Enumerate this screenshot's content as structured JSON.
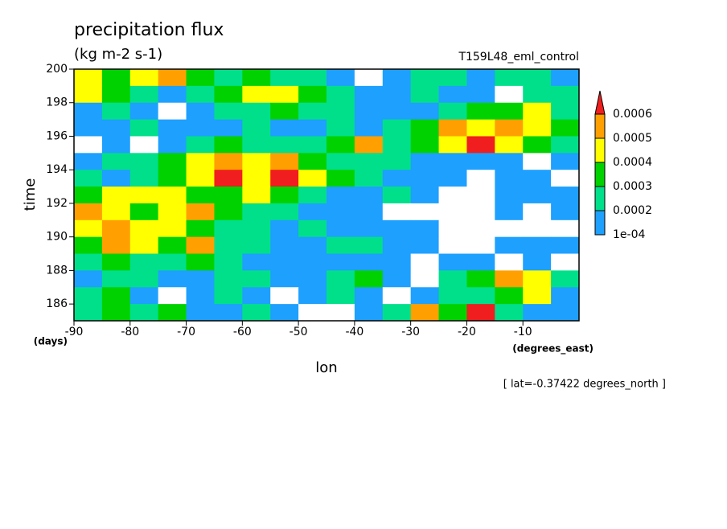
{
  "chart_data": {
    "type": "heatmap",
    "title": "precipitation flux",
    "subtitle": "(kg m-2 s-1)",
    "run_label": "T159L48_eml_control",
    "x_label": "lon",
    "x_units": "(degrees_east)",
    "y_label": "time",
    "y_units": "(days)",
    "annotation": "[ lat=-0.37422 degrees_north ]",
    "xlim": [
      -90,
      0
    ],
    "ylim": [
      185,
      200
    ],
    "xticks": [
      -90,
      -80,
      -70,
      -60,
      -50,
      -40,
      -30,
      -20,
      -10
    ],
    "yticks": [
      186,
      188,
      190,
      192,
      194,
      196,
      198,
      200
    ],
    "x": [
      -87.5,
      -82.5,
      -77.5,
      -72.5,
      -67.5,
      -62.5,
      -57.5,
      -52.5,
      -47.5,
      -42.5,
      -37.5,
      -32.5,
      -27.5,
      -22.5,
      -17.5,
      -12.5,
      -7.5,
      -2.5
    ],
    "y": [
      199.5,
      198.5,
      197.5,
      196.5,
      195.5,
      194.5,
      193.5,
      192.5,
      191.5,
      190.5,
      189.5,
      188.5,
      187.5,
      186.5,
      185.5
    ],
    "levels": [
      {
        "value": 0.0001,
        "label": "1e-04"
      },
      0.0002,
      0.0003,
      0.0004,
      0.0005,
      0.0006
    ],
    "colors": [
      "#ffffff",
      "#1ea0ff",
      "#00e08a",
      "#00d200",
      "#ffff00",
      "#ffa000",
      "#f01e1e"
    ],
    "z": [
      [
        0.00045,
        0.00035,
        0.00045,
        0.00055,
        0.00035,
        0.00025,
        0.00035,
        0.00025,
        0.00025,
        0.00015,
        5e-05,
        0.00015,
        0.00025,
        0.00025,
        0.00015,
        0.00025,
        0.00025,
        0.00015
      ],
      [
        0.00045,
        0.00035,
        0.00025,
        0.00015,
        0.00025,
        0.00035,
        0.00045,
        0.00045,
        0.00035,
        0.00025,
        0.00015,
        0.00015,
        0.00025,
        0.00015,
        0.00015,
        5e-05,
        0.00025,
        0.00025
      ],
      [
        0.00015,
        0.00025,
        0.00015,
        5e-05,
        0.00015,
        0.00025,
        0.00025,
        0.00035,
        0.00025,
        0.00025,
        0.00015,
        0.00015,
        0.00015,
        0.00025,
        0.00035,
        0.00035,
        0.00045,
        0.00025
      ],
      [
        0.00015,
        0.00015,
        0.00025,
        0.00015,
        0.00015,
        0.00015,
        0.00025,
        0.00015,
        0.00015,
        0.00025,
        0.00015,
        0.00025,
        0.00035,
        0.00055,
        0.00045,
        0.00055,
        0.00045,
        0.00035
      ],
      [
        5e-05,
        0.00015,
        5e-05,
        0.00015,
        0.00025,
        0.00035,
        0.00025,
        0.00025,
        0.00025,
        0.00035,
        0.00055,
        0.00025,
        0.00035,
        0.00045,
        0.00065,
        0.00045,
        0.00035,
        0.00025
      ],
      [
        0.00015,
        0.00025,
        0.00025,
        0.00035,
        0.00045,
        0.00055,
        0.00045,
        0.00055,
        0.00035,
        0.00025,
        0.00025,
        0.00025,
        0.00015,
        0.00015,
        0.00015,
        0.00015,
        5e-05,
        0.00015
      ],
      [
        0.00025,
        0.00015,
        0.00025,
        0.00035,
        0.00045,
        0.00065,
        0.00045,
        0.00065,
        0.00045,
        0.00035,
        0.00025,
        0.00015,
        0.00015,
        0.00015,
        5e-05,
        0.00015,
        0.00015,
        5e-05
      ],
      [
        0.00035,
        0.00045,
        0.00045,
        0.00045,
        0.00035,
        0.00035,
        0.00045,
        0.00035,
        0.00025,
        0.00015,
        0.00015,
        0.00025,
        0.00015,
        5e-05,
        5e-05,
        0.00015,
        0.00015,
        0.00015
      ],
      [
        0.00055,
        0.00045,
        0.00035,
        0.00045,
        0.00055,
        0.00035,
        0.00025,
        0.00025,
        0.00015,
        0.00015,
        0.00015,
        5e-05,
        5e-05,
        5e-05,
        5e-05,
        0.00015,
        5e-05,
        0.00015
      ],
      [
        0.00045,
        0.00055,
        0.00045,
        0.00045,
        0.00035,
        0.00025,
        0.00025,
        0.00015,
        0.00025,
        0.00015,
        0.00015,
        0.00015,
        0.00015,
        5e-05,
        5e-05,
        5e-05,
        5e-05,
        5e-05
      ],
      [
        0.00035,
        0.00055,
        0.00045,
        0.00035,
        0.00055,
        0.00025,
        0.00025,
        0.00015,
        0.00015,
        0.00025,
        0.00025,
        0.00015,
        0.00015,
        5e-05,
        5e-05,
        0.00015,
        0.00015,
        0.00015
      ],
      [
        0.00025,
        0.00035,
        0.00025,
        0.00025,
        0.00035,
        0.00025,
        0.00015,
        0.00015,
        0.00015,
        0.00015,
        0.00015,
        0.00015,
        5e-05,
        0.00015,
        0.00015,
        5e-05,
        0.00015,
        5e-05
      ],
      [
        0.00015,
        0.00025,
        0.00025,
        0.00015,
        0.00015,
        0.00025,
        0.00025,
        0.00015,
        0.00015,
        0.00025,
        0.00035,
        0.00015,
        5e-05,
        0.00025,
        0.00035,
        0.00055,
        0.00045,
        0.00025
      ],
      [
        0.00025,
        0.00035,
        0.00015,
        5e-05,
        0.00015,
        0.00025,
        0.00015,
        5e-05,
        0.00015,
        0.00025,
        0.00015,
        5e-05,
        0.00015,
        0.00025,
        0.00025,
        0.00035,
        0.00045,
        0.00015
      ],
      [
        0.00025,
        0.00035,
        0.00025,
        0.00035,
        0.00015,
        0.00015,
        0.00025,
        0.00015,
        5e-05,
        5e-05,
        0.00015,
        0.00025,
        0.00055,
        0.00035,
        0.00065,
        0.00025,
        0.00015,
        0.00015
      ]
    ]
  }
}
